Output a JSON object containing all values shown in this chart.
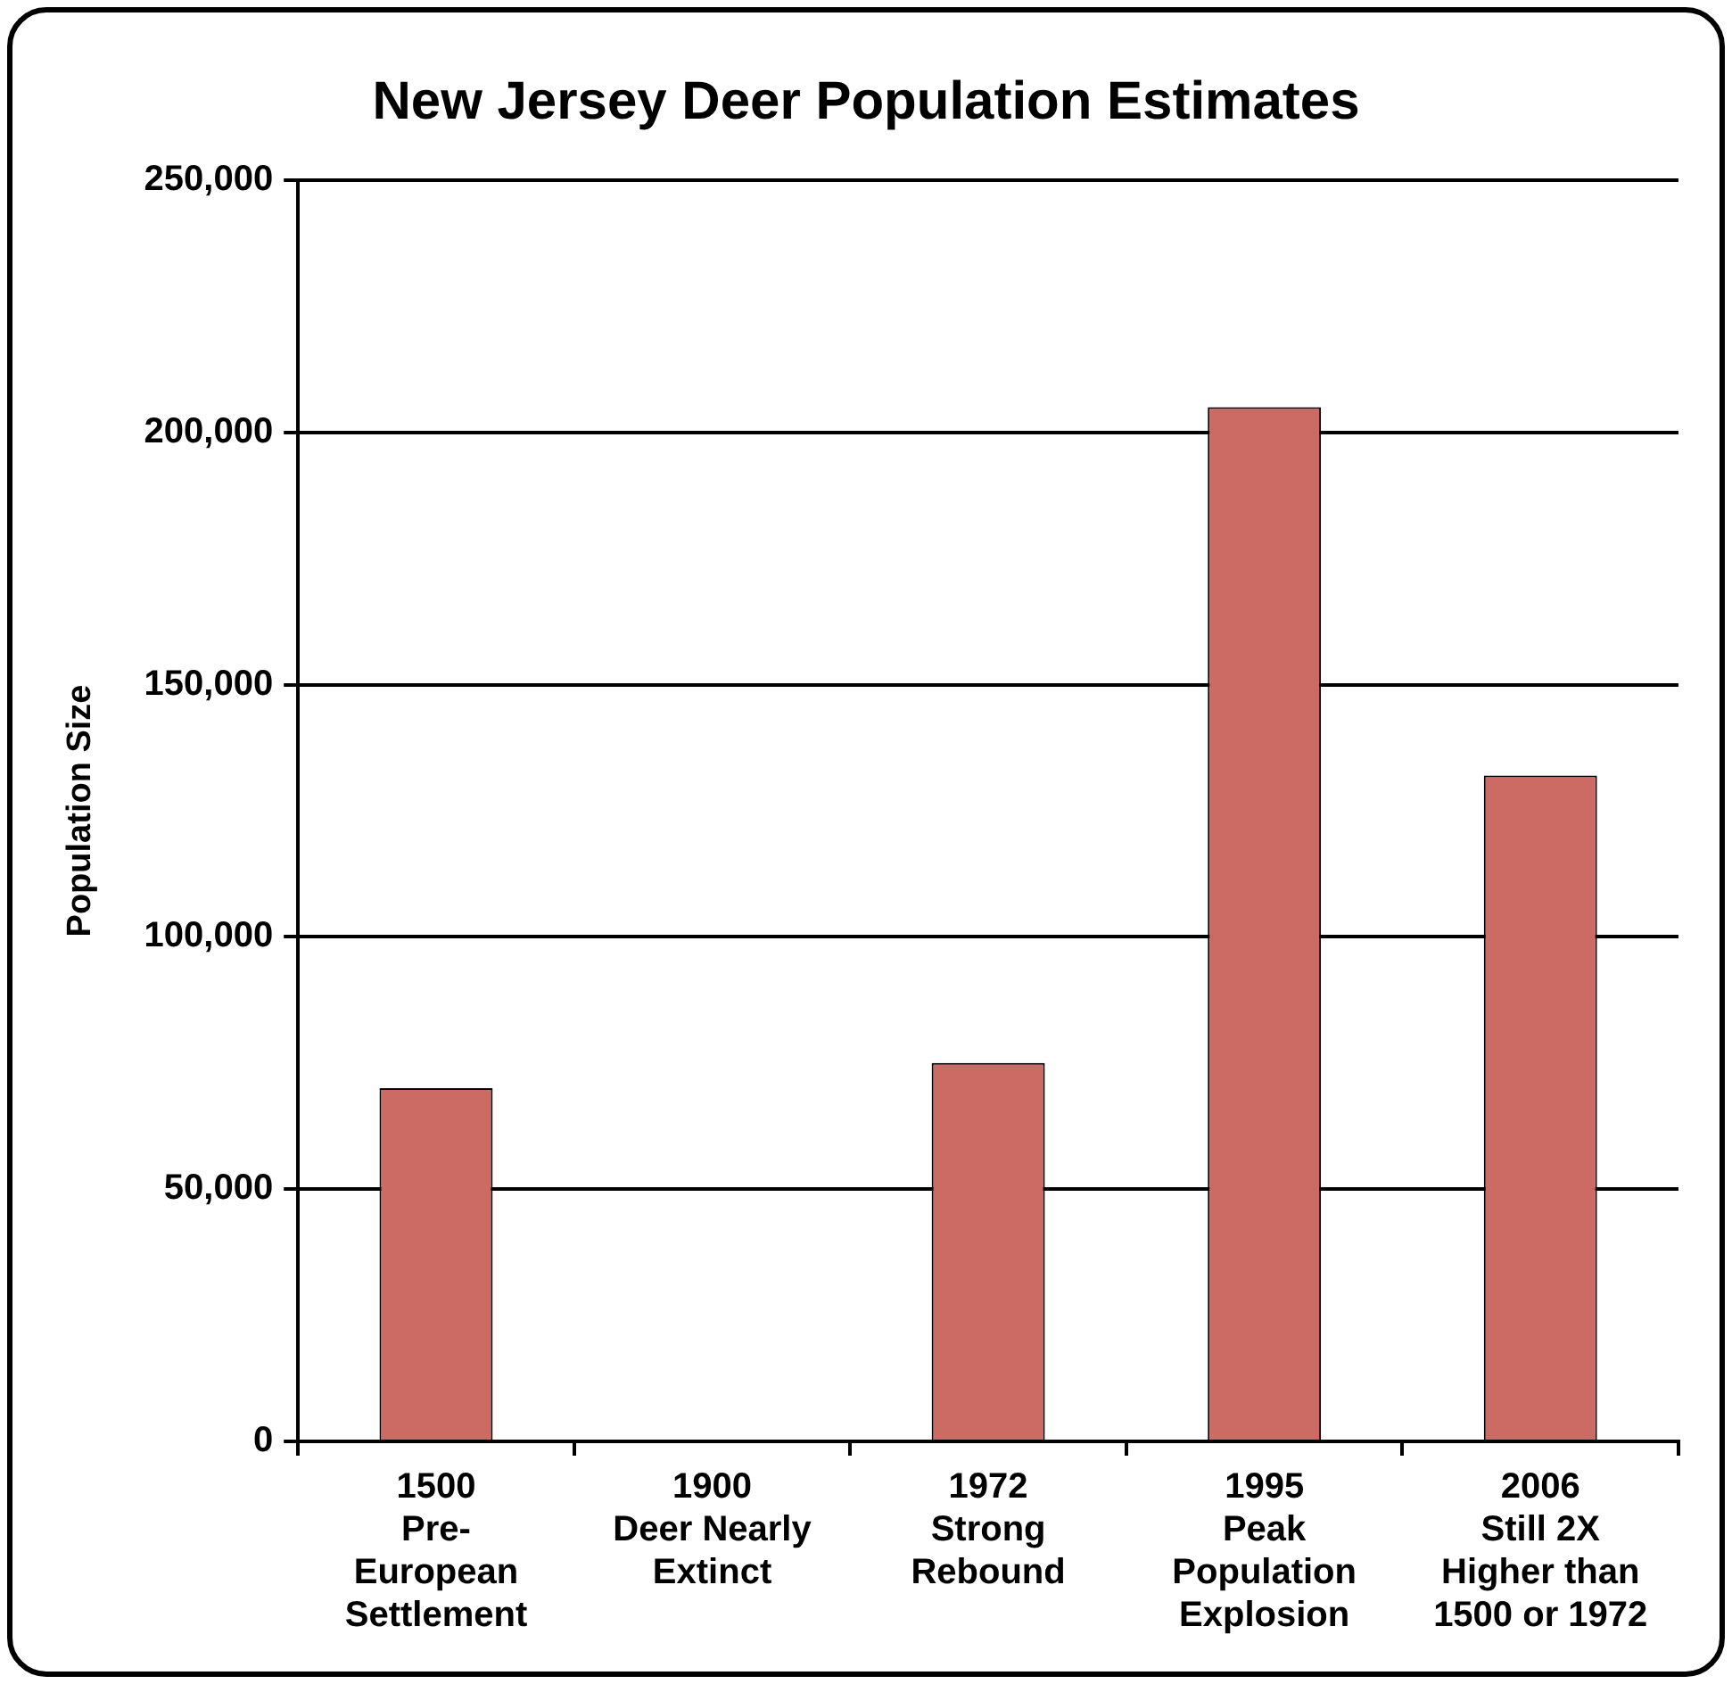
{
  "chart_data": {
    "type": "bar",
    "title": "New Jersey Deer Population Estimates",
    "ylabel": "Population Size",
    "categories": [
      "1500\nPre-\nEuropean\nSettlement",
      "1900\nDeer Nearly\nExtinct",
      "1972\nStrong\nRebound",
      "1995\nPeak\nPopulation\nExplosion",
      "2006\nStill 2X\nHigher than\n1500 or 1972"
    ],
    "values": [
      70000,
      0,
      75000,
      205000,
      132000
    ],
    "color": "#cc6b63",
    "ylim": [
      0,
      250000
    ],
    "yticks": [
      0,
      {
        "value": 50000,
        "label": "50,000"
      },
      {
        "value": 100000,
        "label": "100,000"
      },
      {
        "value": 150000,
        "label": "150,000"
      },
      {
        "value": 200000,
        "label": "200,000"
      },
      {
        "value": 250000,
        "label": "250,000"
      }
    ],
    "grid": "y",
    "legend": false
  }
}
